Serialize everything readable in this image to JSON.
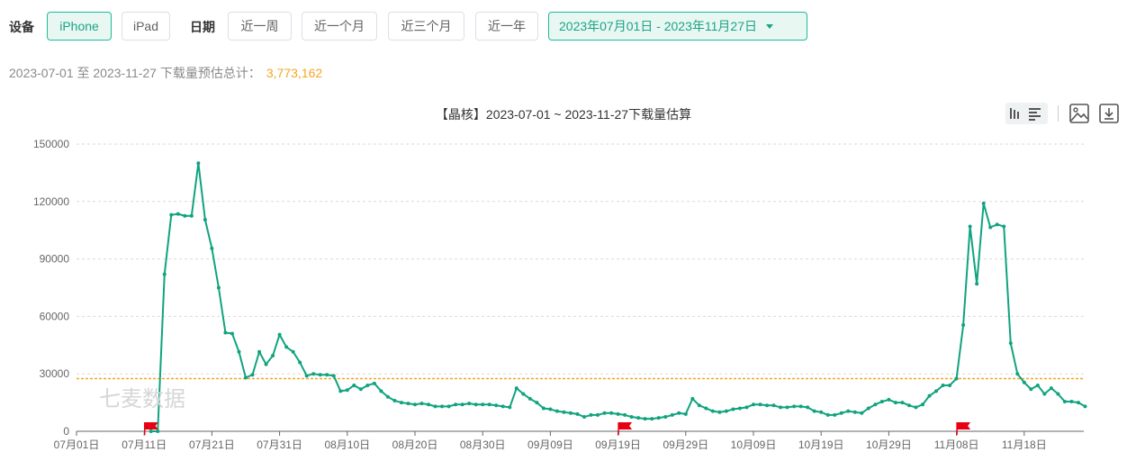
{
  "filters": {
    "device_label": "设备",
    "devices": [
      "iPhone",
      "iPad"
    ],
    "active_device": "iPhone",
    "date_label": "日期",
    "quick_ranges": [
      "近一周",
      "近一个月",
      "近三个月",
      "近一年"
    ],
    "range_value": "2023年07月01日 - 2023年11月27日"
  },
  "summary": {
    "text": "2023-07-01 至 2023-11-27 下载量预估总计：",
    "total": "3,773,162"
  },
  "watermark": "七麦数据",
  "colors": {
    "accent": "#1abc9c",
    "line": "#10a37f",
    "average": "#f5a623",
    "flag": "#e60012"
  },
  "toolbar_icons": [
    "bar-chart-icon",
    "list-icon",
    "image-icon",
    "download-icon"
  ],
  "chart_data": {
    "type": "line",
    "title": "【晶核】2023-07-01 ~ 2023-11-27下载量估算",
    "x_start": "2023-07-01",
    "x_ticks": [
      "07月01日",
      "07月11日",
      "07月21日",
      "07月31日",
      "08月10日",
      "08月20日",
      "08月30日",
      "09月09日",
      "09月19日",
      "09月29日",
      "10月09日",
      "10月19日",
      "10月29日",
      "11月08日",
      "11月18日"
    ],
    "y_ticks": [
      "0",
      "30000",
      "60000",
      "90000",
      "120000",
      "150000"
    ],
    "ylim": [
      0,
      150000
    ],
    "grid": true,
    "average": 27500,
    "flags_at": [
      "07月12日",
      "09月20日",
      "11月09日"
    ],
    "series": [
      {
        "values": [
          null,
          null,
          null,
          null,
          null,
          null,
          null,
          null,
          null,
          null,
          null,
          0,
          0,
          82000,
          113000,
          113500,
          112500,
          112500,
          140000,
          110500,
          95500,
          75000,
          51500,
          51000,
          41500,
          28000,
          29500,
          41500,
          35000,
          39500,
          50500,
          44000,
          41500,
          36000,
          29000,
          30000,
          29500,
          29500,
          29000,
          21000,
          21500,
          24000,
          22000,
          24000,
          25000,
          21000,
          18000,
          16000,
          15000,
          14500,
          14000,
          14500,
          14000,
          13000,
          13000,
          13000,
          14000,
          14000,
          14500,
          14000,
          14000,
          14000,
          13500,
          13000,
          12500,
          22500,
          19500,
          17000,
          15000,
          12000,
          11500,
          10500,
          10000,
          9500,
          9000,
          7500,
          8500,
          8500,
          9500,
          9500,
          9000,
          8500,
          7500,
          7000,
          6500,
          6500,
          7000,
          7500,
          8500,
          9500,
          9000,
          17000,
          13500,
          12000,
          10500,
          10000,
          10500,
          11500,
          12000,
          12500,
          14000,
          14000,
          13500,
          13500,
          12500,
          12500,
          13000,
          13000,
          12500,
          10500,
          10000,
          8500,
          8500,
          9500,
          10500,
          10000,
          9500,
          12000,
          14000,
          15500,
          16500,
          15000,
          15000,
          13500,
          12500,
          14000,
          18500,
          21000,
          24000,
          24000,
          27500,
          55500,
          107000,
          77000,
          119000,
          106500,
          108000,
          107000,
          46000,
          30000,
          25500,
          22000,
          24000,
          19500,
          22500,
          19500,
          15500,
          15500,
          15000,
          13000
        ]
      }
    ]
  }
}
